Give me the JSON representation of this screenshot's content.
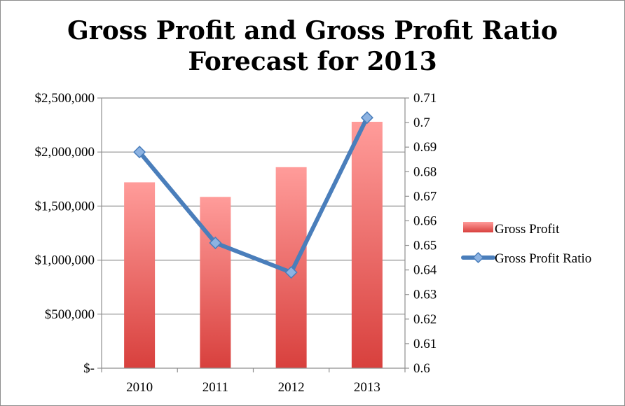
{
  "chart_data": {
    "type": "bar",
    "title_lines": [
      "Gross Profit and Gross Profit Ratio",
      "Forecast for 2013"
    ],
    "categories": [
      "2010",
      "2011",
      "2012",
      "2013"
    ],
    "series": [
      {
        "name": "Gross Profit",
        "type": "bar",
        "axis": "left",
        "values": [
          1720000,
          1585000,
          1860000,
          2280000
        ],
        "color": "#d94a47"
      },
      {
        "name": "Gross Profit Ratio",
        "type": "line",
        "axis": "right",
        "values": [
          0.688,
          0.651,
          0.639,
          0.702
        ],
        "color": "#4a7ebb"
      }
    ],
    "y_left": {
      "min": 0,
      "max": 2500000,
      "ticks": [
        0,
        500000,
        1000000,
        1500000,
        2000000,
        2500000
      ],
      "tick_labels": [
        "$-",
        "$500,000",
        "$1,000,000",
        "$1,500,000",
        "$2,000,000",
        "$2,500,000"
      ]
    },
    "y_right": {
      "min": 0.6,
      "max": 0.71,
      "tick_labels": [
        "0.6",
        "0.61",
        "0.62",
        "0.63",
        "0.64",
        "0.65",
        "0.66",
        "0.67",
        "0.68",
        "0.69",
        "0.7",
        "0.71"
      ]
    },
    "grid": true,
    "legend": "right",
    "xlabel": "",
    "ylabel": ""
  }
}
